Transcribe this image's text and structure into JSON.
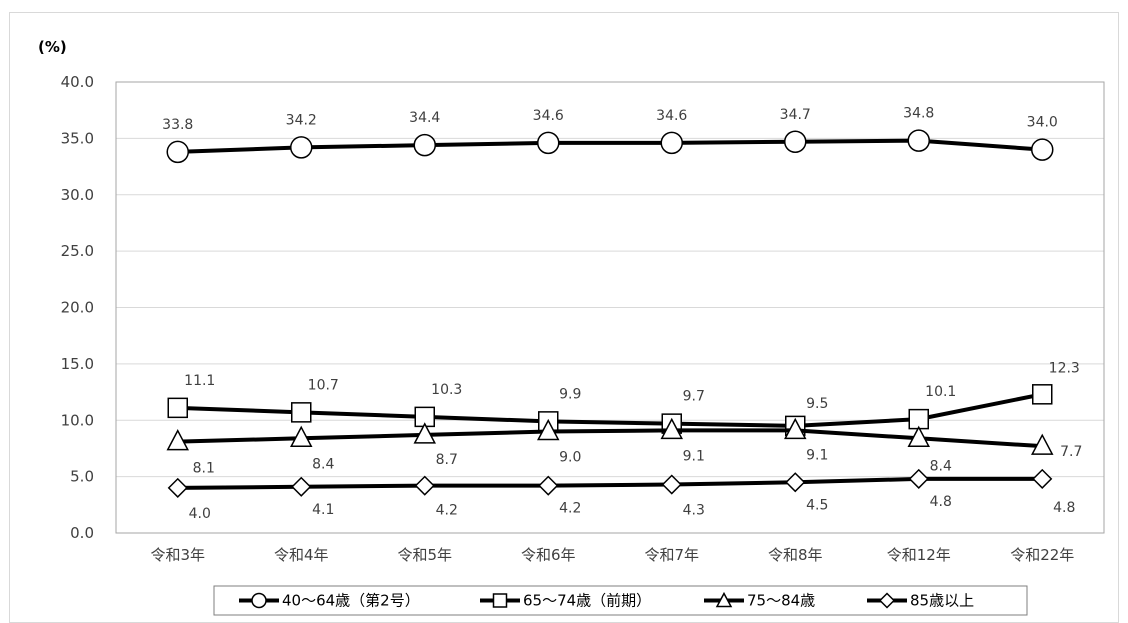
{
  "chart_data": {
    "type": "line",
    "y_unit": "(%)",
    "categories": [
      "令和3年",
      "令和4年",
      "令和5年",
      "令和6年",
      "令和7年",
      "令和8年",
      "令和12年",
      "令和22年"
    ],
    "ylim": [
      0,
      40
    ],
    "yticks": [
      "0.0",
      "5.0",
      "10.0",
      "15.0",
      "20.0",
      "25.0",
      "30.0",
      "35.0",
      "40.0"
    ],
    "grid": true,
    "legend_position": "bottom",
    "series": [
      {
        "name": "40～64歳（第2号）",
        "marker": "circle",
        "values": [
          33.8,
          34.2,
          34.4,
          34.6,
          34.6,
          34.7,
          34.8,
          34.0
        ],
        "labels": [
          "33.8",
          "34.2",
          "34.4",
          "34.6",
          "34.6",
          "34.7",
          "34.8",
          "34.0"
        ]
      },
      {
        "name": "65～74歳（前期）",
        "marker": "square",
        "values": [
          11.1,
          10.7,
          10.3,
          9.9,
          9.7,
          9.5,
          10.1,
          12.3
        ],
        "labels": [
          "11.1",
          "10.7",
          "10.3",
          "9.9",
          "9.7",
          "9.5",
          "10.1",
          "12.3"
        ]
      },
      {
        "name": "75～84歳",
        "marker": "triangle",
        "values": [
          8.1,
          8.4,
          8.7,
          9.0,
          9.1,
          9.1,
          8.4,
          7.7
        ],
        "labels": [
          "8.1",
          "8.4",
          "8.7",
          "9.0",
          "9.1",
          "9.1",
          "8.4",
          "7.7"
        ]
      },
      {
        "name": "85歳以上",
        "marker": "diamond",
        "values": [
          4.0,
          4.1,
          4.2,
          4.2,
          4.3,
          4.5,
          4.8,
          4.8
        ],
        "labels": [
          "4.0",
          "4.1",
          "4.2",
          "4.2",
          "4.3",
          "4.5",
          "4.8",
          "4.8"
        ]
      }
    ]
  }
}
